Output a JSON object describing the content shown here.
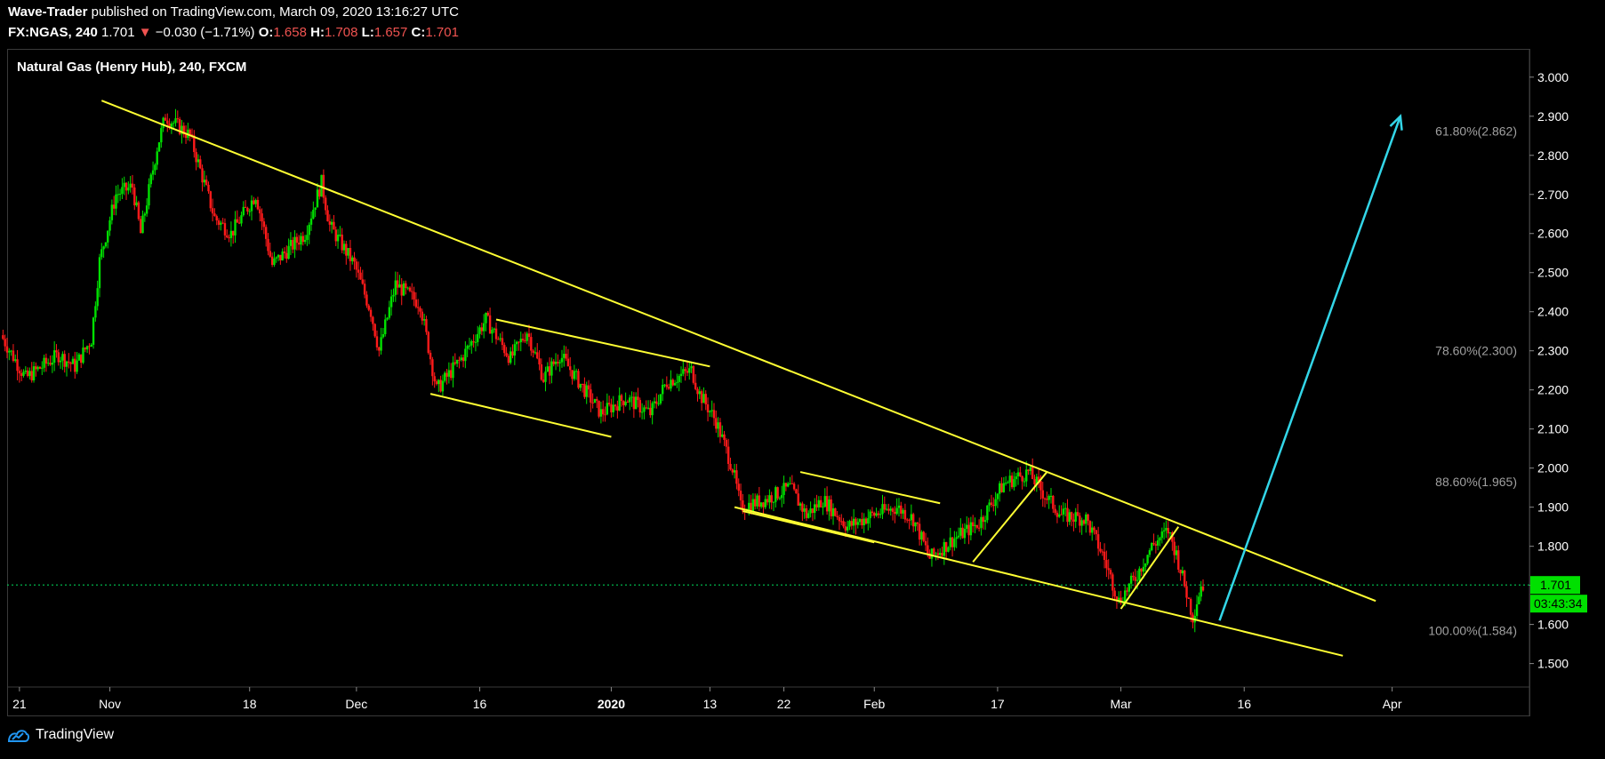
{
  "header": {
    "publisher": "Wave-Trader",
    "published_text": "published on TradingView.com, March 09, 2020 13:16:27 UTC",
    "symbol": "FX:NGAS, 240",
    "last": "1.701",
    "change_arrow": "▼",
    "change": "−0.030 (−1.71%)",
    "o_label": "O:",
    "o_val": "1.658",
    "h_label": "H:",
    "h_val": "1.708",
    "l_label": "L:",
    "l_val": "1.657",
    "c_label": "C:",
    "c_val": "1.701"
  },
  "footer": {
    "brand": "TradingView",
    "brand_icon": "tradingview-logo-icon"
  },
  "colors": {
    "up": "#00e000",
    "down": "#ff1a1a",
    "trend": "#ffff33",
    "arrow": "#33d6e8",
    "price_line": "#00c853",
    "badge": "#00e000"
  },
  "chart_data": {
    "type": "candlestick",
    "title": "Natural Gas (Henry Hub), 240, FXCM",
    "ylim": [
      1.44,
      3.07
    ],
    "y_ticks": [
      "3.000",
      "2.900",
      "2.800",
      "2.700",
      "2.600",
      "2.500",
      "2.400",
      "2.300",
      "2.200",
      "2.100",
      "2.000",
      "1.900",
      "1.800",
      "1.700",
      "1.600",
      "1.500"
    ],
    "x_ticks": [
      "21",
      "Nov",
      "18",
      "Dec",
      "16",
      "2020",
      "13",
      "22",
      "Feb",
      "17",
      "Mar",
      "16",
      "Apr"
    ],
    "x_tick_days": [
      -10,
      1,
      18,
      31,
      46,
      62,
      74,
      83,
      94,
      109,
      124,
      139,
      157
    ],
    "x_range_days": [
      -11.5,
      173.7
    ],
    "last_price": "1.701",
    "countdown": "03:43:34",
    "fib_levels": [
      {
        "label": "61.80%(2.862)",
        "value": 2.862
      },
      {
        "label": "78.60%(2.300)",
        "value": 2.3
      },
      {
        "label": "88.60%(1.965)",
        "value": 1.965
      },
      {
        "label": "100.00%(1.584)",
        "value": 1.584
      }
    ],
    "price_path": [
      {
        "day": -12,
        "price": 2.34
      },
      {
        "day": -9,
        "price": 2.23
      },
      {
        "day": -5,
        "price": 2.29
      },
      {
        "day": -3,
        "price": 2.26
      },
      {
        "day": -1,
        "price": 2.33
      },
      {
        "day": 0,
        "price": 2.53
      },
      {
        "day": 2,
        "price": 2.7
      },
      {
        "day": 4,
        "price": 2.72
      },
      {
        "day": 5,
        "price": 2.6
      },
      {
        "day": 7,
        "price": 2.82
      },
      {
        "day": 8,
        "price": 2.9
      },
      {
        "day": 11,
        "price": 2.85
      },
      {
        "day": 12,
        "price": 2.78
      },
      {
        "day": 14,
        "price": 2.64
      },
      {
        "day": 16,
        "price": 2.6
      },
      {
        "day": 19,
        "price": 2.7
      },
      {
        "day": 21,
        "price": 2.52
      },
      {
        "day": 25,
        "price": 2.6
      },
      {
        "day": 27,
        "price": 2.73
      },
      {
        "day": 28,
        "price": 2.62
      },
      {
        "day": 31,
        "price": 2.52
      },
      {
        "day": 33,
        "price": 2.4
      },
      {
        "day": 34,
        "price": 2.3
      },
      {
        "day": 36,
        "price": 2.47
      },
      {
        "day": 39,
        "price": 2.42
      },
      {
        "day": 41,
        "price": 2.2
      },
      {
        "day": 44,
        "price": 2.28
      },
      {
        "day": 47,
        "price": 2.38
      },
      {
        "day": 50,
        "price": 2.28
      },
      {
        "day": 52,
        "price": 2.35
      },
      {
        "day": 54,
        "price": 2.23
      },
      {
        "day": 56,
        "price": 2.29
      },
      {
        "day": 59,
        "price": 2.2
      },
      {
        "day": 61,
        "price": 2.14
      },
      {
        "day": 64,
        "price": 2.18
      },
      {
        "day": 67,
        "price": 2.14
      },
      {
        "day": 69,
        "price": 2.22
      },
      {
        "day": 72,
        "price": 2.25
      },
      {
        "day": 73,
        "price": 2.19
      },
      {
        "day": 75,
        "price": 2.12
      },
      {
        "day": 77,
        "price": 2.0
      },
      {
        "day": 78,
        "price": 1.9
      },
      {
        "day": 81,
        "price": 1.92
      },
      {
        "day": 84,
        "price": 1.95
      },
      {
        "day": 86,
        "price": 1.88
      },
      {
        "day": 88,
        "price": 1.92
      },
      {
        "day": 91,
        "price": 1.85
      },
      {
        "day": 94,
        "price": 1.88
      },
      {
        "day": 97,
        "price": 1.9
      },
      {
        "day": 99,
        "price": 1.87
      },
      {
        "day": 101,
        "price": 1.77
      },
      {
        "day": 104,
        "price": 1.82
      },
      {
        "day": 107,
        "price": 1.86
      },
      {
        "day": 110,
        "price": 1.96
      },
      {
        "day": 113,
        "price": 1.99
      },
      {
        "day": 115,
        "price": 1.93
      },
      {
        "day": 117,
        "price": 1.88
      },
      {
        "day": 120,
        "price": 1.87
      },
      {
        "day": 122,
        "price": 1.78
      },
      {
        "day": 124,
        "price": 1.66
      },
      {
        "day": 126,
        "price": 1.72
      },
      {
        "day": 128,
        "price": 1.8
      },
      {
        "day": 130,
        "price": 1.84
      },
      {
        "day": 131,
        "price": 1.78
      },
      {
        "day": 132,
        "price": 1.7
      },
      {
        "day": 133,
        "price": 1.62
      },
      {
        "day": 134,
        "price": 1.7
      }
    ],
    "trendlines": [
      {
        "name": "main-upper-trendline",
        "p1": {
          "day": 0,
          "price": 2.94
        },
        "p2": {
          "day": 155,
          "price": 1.66
        }
      },
      {
        "name": "main-lower-trendline",
        "p1": {
          "day": 77,
          "price": 1.9
        },
        "p2": {
          "day": 151,
          "price": 1.52
        }
      },
      {
        "name": "channel1-upper",
        "p1": {
          "day": 48,
          "price": 2.38
        },
        "p2": {
          "day": 74,
          "price": 2.26
        }
      },
      {
        "name": "channel1-lower",
        "p1": {
          "day": 40,
          "price": 2.19
        },
        "p2": {
          "day": 62,
          "price": 2.08
        }
      },
      {
        "name": "channel2-upper",
        "p1": {
          "day": 85,
          "price": 1.99
        },
        "p2": {
          "day": 102,
          "price": 1.91
        }
      },
      {
        "name": "channel2-lower",
        "p1": {
          "day": 78,
          "price": 1.89
        },
        "p2": {
          "day": 94,
          "price": 1.81
        }
      },
      {
        "name": "wave-up-1",
        "p1": {
          "day": 106,
          "price": 1.76
        },
        "p2": {
          "day": 115,
          "price": 1.99
        }
      },
      {
        "name": "wave-up-2",
        "p1": {
          "day": 124,
          "price": 1.64
        },
        "p2": {
          "day": 131,
          "price": 1.85
        }
      }
    ],
    "arrow": {
      "p1": {
        "day": 136,
        "price": 1.61
      },
      "p2": {
        "day": 158,
        "price": 2.9
      }
    }
  }
}
